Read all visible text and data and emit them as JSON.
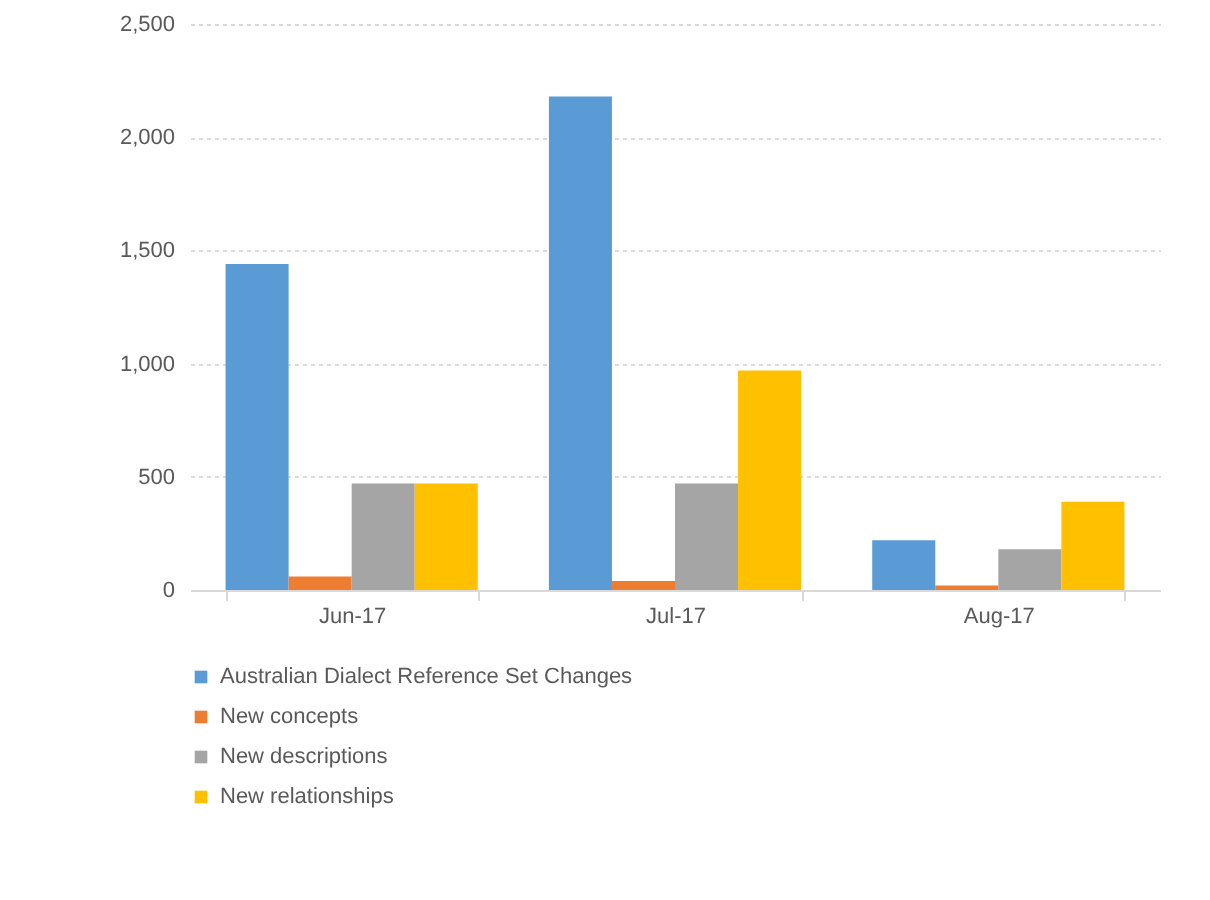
{
  "chart_data": {
    "type": "bar",
    "categories": [
      "Jun-17",
      "Jul-17",
      "Aug-17"
    ],
    "series": [
      {
        "name": "Australian Dialect Reference Set Changes",
        "color": "#5b9bd5",
        "values": [
          1440,
          2180,
          220
        ]
      },
      {
        "name": "New concepts",
        "color": "#ed7d31",
        "values": [
          60,
          40,
          20
        ]
      },
      {
        "name": "New descriptions",
        "color": "#a5a5a5",
        "values": [
          470,
          470,
          180
        ]
      },
      {
        "name": "New relationships",
        "color": "#ffc000",
        "values": [
          470,
          970,
          390
        ]
      }
    ],
    "ylim": [
      0,
      2500
    ],
    "yticks": [
      0,
      {
        "value": 500,
        "label": "500"
      },
      {
        "value": 1000,
        "label": "1,000"
      },
      {
        "value": 1500,
        "label": "1,500"
      },
      {
        "value": 2000,
        "label": "2,000"
      },
      {
        "value": 2500,
        "label": "2,500"
      }
    ],
    "grid": "y",
    "legend": "bottom"
  }
}
